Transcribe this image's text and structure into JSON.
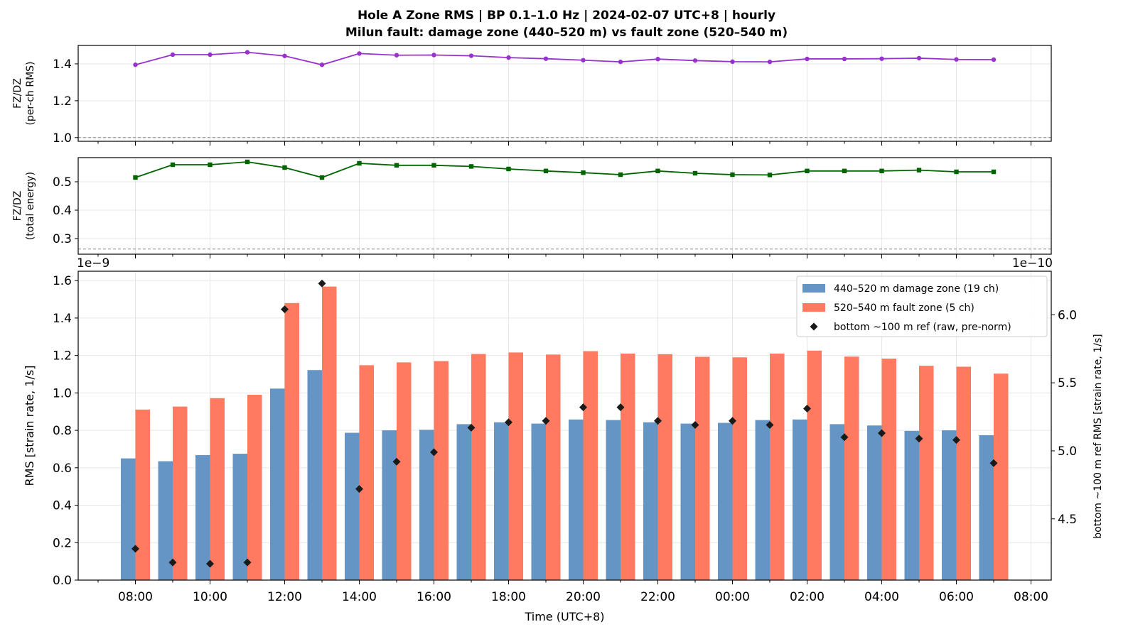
{
  "chart_data": {
    "title": "Hole A Zone RMS  |  BP 0.1–1.0 Hz  |  2024-02-07 UTC+8  |  hourly",
    "subtitle": "Milun fault: damage zone (440–520 m) vs fault zone (520–540 m)",
    "xlabel": "Time (UTC+8)",
    "x_tick_labels": [
      "08:00",
      "10:00",
      "12:00",
      "14:00",
      "16:00",
      "18:00",
      "20:00",
      "22:00",
      "00:00",
      "02:00",
      "04:00",
      "06:00",
      "08:00"
    ],
    "hours": [
      "08:00",
      "09:00",
      "10:00",
      "11:00",
      "12:00",
      "13:00",
      "14:00",
      "15:00",
      "16:00",
      "17:00",
      "18:00",
      "19:00",
      "20:00",
      "21:00",
      "22:00",
      "23:00",
      "00:00",
      "01:00",
      "02:00",
      "03:00",
      "04:00",
      "05:00",
      "06:00",
      "07:00"
    ],
    "panels": [
      {
        "type": "line",
        "ylabel_line1": "FZ/DZ",
        "ylabel_line2": "(per-ch RMS)",
        "ylim": [
          0.98,
          1.5
        ],
        "yticks": [
          "1.0",
          "1.2",
          "1.4"
        ],
        "ytick_values": [
          1.0,
          1.2,
          1.4
        ],
        "reference_line": 1.0,
        "color": "#9932CC",
        "values": [
          1.395,
          1.45,
          1.45,
          1.463,
          1.443,
          1.395,
          1.456,
          1.447,
          1.448,
          1.444,
          1.434,
          1.428,
          1.42,
          1.411,
          1.426,
          1.418,
          1.412,
          1.411,
          1.427,
          1.427,
          1.428,
          1.431,
          1.424,
          1.423
        ]
      },
      {
        "type": "line",
        "ylabel_line1": "FZ/DZ",
        "ylabel_line2": "(total energy)",
        "ylim": [
          0.245,
          0.585
        ],
        "yticks": [
          "0.3",
          "0.4",
          "0.5"
        ],
        "ytick_values": [
          0.3,
          0.4,
          0.5
        ],
        "reference_line": 0.263,
        "color": "#006400",
        "values": [
          0.515,
          0.56,
          0.56,
          0.57,
          0.55,
          0.515,
          0.565,
          0.558,
          0.558,
          0.554,
          0.545,
          0.538,
          0.532,
          0.525,
          0.538,
          0.53,
          0.525,
          0.524,
          0.538,
          0.538,
          0.538,
          0.541,
          0.535,
          0.535
        ]
      },
      {
        "type": "bar",
        "ylabel": "RMS  [strain rate, 1/s]",
        "ylabel_right": "bottom ~100 m ref RMS  [strain rate, 1/s]",
        "offset_left": "1e−9",
        "offset_right": "1e−10",
        "ylim": [
          0,
          1.65
        ],
        "yticks": [
          "0.0",
          "0.2",
          "0.4",
          "0.6",
          "0.8",
          "1.0",
          "1.2",
          "1.4",
          "1.6"
        ],
        "ytick_values": [
          0,
          0.2,
          0.4,
          0.6,
          0.8,
          1.0,
          1.2,
          1.4,
          1.6
        ],
        "ylim_right": [
          4.05,
          6.32
        ],
        "yticks_right": [
          "4.5",
          "5.0",
          "5.5",
          "6.0"
        ],
        "ytick_values_right": [
          4.5,
          5.0,
          5.5,
          6.0
        ],
        "legend_position": "upper-right",
        "series": [
          {
            "name": "440–520 m  damage zone (19 ch)",
            "color": "#6495C4",
            "values": [
              0.65,
              0.635,
              0.668,
              0.675,
              1.023,
              1.122,
              0.787,
              0.8,
              0.803,
              0.833,
              0.843,
              0.836,
              0.858,
              0.855,
              0.843,
              0.836,
              0.84,
              0.855,
              0.858,
              0.833,
              0.826,
              0.797,
              0.8,
              0.774
            ]
          },
          {
            "name": "520–540 m  fault zone (5 ch)",
            "color": "#FF7A60",
            "values": [
              0.911,
              0.927,
              0.972,
              0.99,
              1.48,
              1.568,
              1.148,
              1.163,
              1.17,
              1.208,
              1.216,
              1.205,
              1.223,
              1.21,
              1.207,
              1.193,
              1.19,
              1.21,
              1.226,
              1.194,
              1.183,
              1.145,
              1.14,
              1.103
            ]
          },
          {
            "name": "bottom ~100 m ref (raw, pre-norm)",
            "color": "#1a1a1a",
            "marker": "diamond",
            "axis": "right",
            "values": [
              4.28,
              4.18,
              4.17,
              4.18,
              6.04,
              6.23,
              4.72,
              4.92,
              4.99,
              5.17,
              5.21,
              5.22,
              5.32,
              5.32,
              5.22,
              5.19,
              5.22,
              5.19,
              5.31,
              5.1,
              5.13,
              5.09,
              5.08,
              4.91
            ]
          }
        ]
      }
    ]
  }
}
